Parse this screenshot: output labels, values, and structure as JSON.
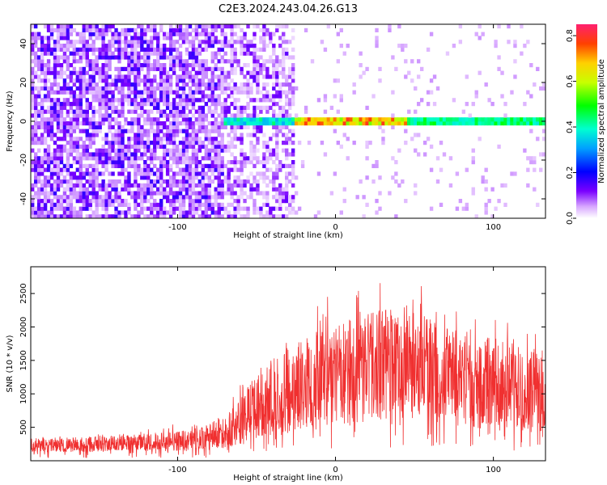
{
  "title": "C2E3.2024.243.04.26.G13",
  "chart_data": [
    {
      "type": "heatmap",
      "xlabel": "Height of straight line (km)",
      "ylabel": "Frequency (Hz)",
      "xlim": [
        -193,
        133
      ],
      "ylim": [
        -50,
        50
      ],
      "xticks": [
        -100,
        0,
        100
      ],
      "yticks": [
        -40,
        -20,
        0,
        20,
        40
      ],
      "colorbar": {
        "label": "Normalized spectral amplitude",
        "range": [
          0,
          0.85
        ],
        "ticks": [
          0.0,
          0.2,
          0.4,
          0.6,
          0.8
        ]
      },
      "features": {
        "noise_region_x": [
          -193,
          -70
        ],
        "transition_region_x": [
          -70,
          -25
        ],
        "signal_band_center_hz": 0,
        "signal_band_halfwidth_hz": 2.5,
        "signal_start_x": -70,
        "peak_amplitude_region_x": [
          -25,
          45
        ]
      }
    },
    {
      "type": "line",
      "xlabel": "Height of straight line (km)",
      "ylabel": "SNR (10 * v/v)",
      "xlim": [
        -193,
        133
      ],
      "ylim": [
        0,
        2900
      ],
      "xticks": [
        -100,
        0,
        100
      ],
      "yticks": [
        500,
        1000,
        1500,
        2000,
        2500
      ],
      "color": "#f03030",
      "envelope": {
        "x": [
          -193,
          -160,
          -130,
          -100,
          -80,
          -65,
          -55,
          -45,
          -35,
          -25,
          -15,
          -5,
          5,
          15,
          25,
          40,
          55,
          70,
          85,
          100,
          115,
          133
        ],
        "low": [
          130,
          130,
          140,
          140,
          150,
          200,
          260,
          320,
          380,
          420,
          450,
          470,
          500,
          550,
          600,
          650,
          600,
          550,
          500,
          450,
          420,
          400
        ],
        "high": [
          380,
          400,
          430,
          520,
          620,
          900,
          1300,
          1700,
          1900,
          2000,
          2200,
          2300,
          2350,
          2400,
          2500,
          2550,
          2500,
          2250,
          2050,
          2000,
          1950,
          1900
        ],
        "mid": [
          220,
          230,
          250,
          280,
          340,
          480,
          650,
          800,
          950,
          1050,
          1150,
          1250,
          1320,
          1420,
          1530,
          1600,
          1550,
          1400,
          1280,
          1200,
          1150,
          1100
        ]
      }
    }
  ]
}
